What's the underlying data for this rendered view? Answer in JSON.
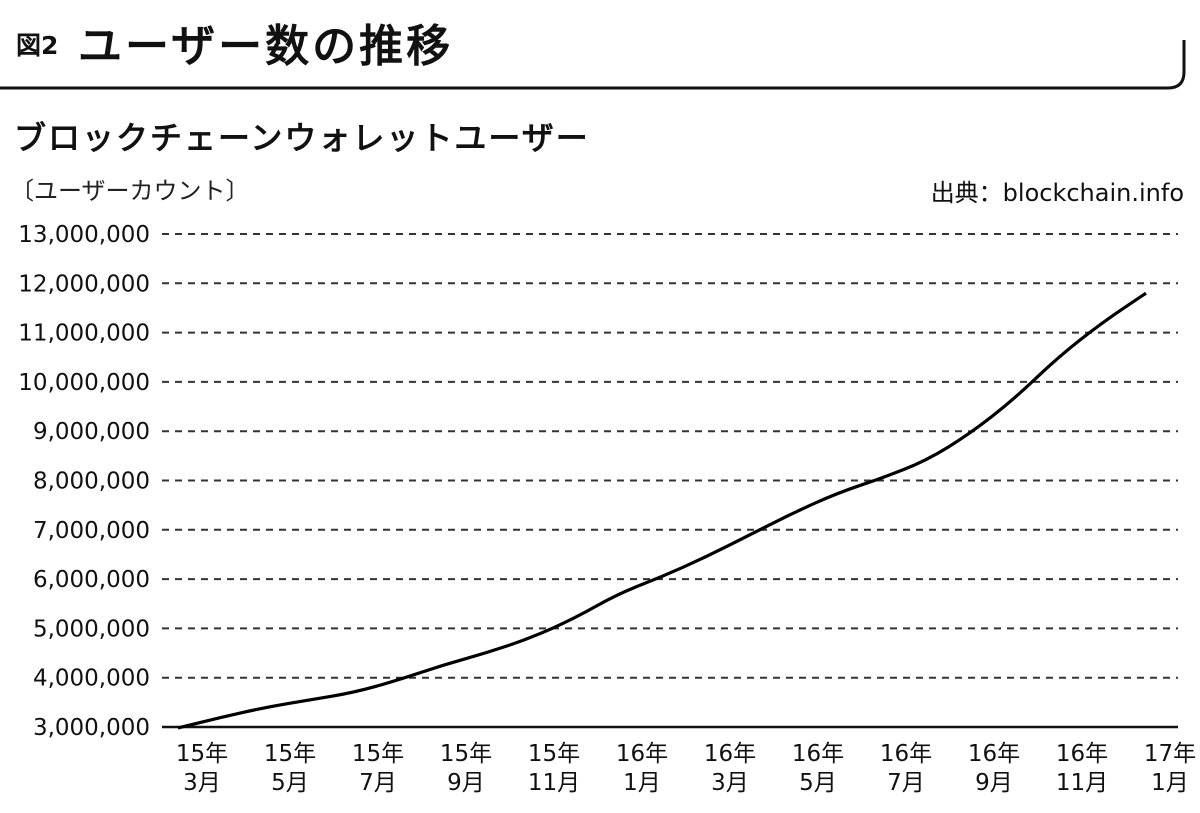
{
  "figure": {
    "label": "図2",
    "title": "ユーザー数の推移"
  },
  "chart_data": {
    "type": "line",
    "title": "ブロックチェーンウォレットユーザー",
    "ylabel": "〔ユーザーカウント〕",
    "source": "出典：blockchain.info",
    "ylim": [
      3000000,
      13000000
    ],
    "yticks": [
      3000000,
      4000000,
      5000000,
      6000000,
      7000000,
      8000000,
      9000000,
      10000000,
      11000000,
      12000000,
      13000000
    ],
    "ytick_labels": [
      "3,000,000",
      "4,000,000",
      "5,000,000",
      "6,000,000",
      "7,000,000",
      "8,000,000",
      "9,000,000",
      "10,000,000",
      "11,000,000",
      "12,000,000",
      "13,000,000"
    ],
    "xticks": [
      {
        "year": "15年",
        "month": "3月"
      },
      {
        "year": "15年",
        "month": "5月"
      },
      {
        "year": "15年",
        "month": "7月"
      },
      {
        "year": "15年",
        "month": "9月"
      },
      {
        "year": "15年",
        "month": "11月"
      },
      {
        "year": "16年",
        "month": "1月"
      },
      {
        "year": "16年",
        "month": "3月"
      },
      {
        "year": "16年",
        "month": "5月"
      },
      {
        "year": "16年",
        "month": "7月"
      },
      {
        "year": "16年",
        "month": "9月"
      },
      {
        "year": "16年",
        "month": "11月"
      },
      {
        "year": "17年",
        "month": "1月"
      }
    ],
    "grid": true,
    "series": [
      {
        "x": [
          "2015-03",
          "2015-04",
          "2015-05",
          "2015-06",
          "2015-07",
          "2015-08",
          "2015-09",
          "2015-10",
          "2015-11",
          "2015-12",
          "2016-01",
          "2016-02",
          "2016-03",
          "2016-04",
          "2016-05",
          "2016-06",
          "2016-07",
          "2016-08",
          "2016-09",
          "2016-10",
          "2016-11",
          "2016-12",
          "2017-01"
        ],
        "values": [
          2980000,
          3200000,
          3400000,
          3550000,
          3700000,
          3950000,
          4250000,
          4500000,
          4800000,
          5200000,
          5700000,
          6050000,
          6450000,
          6900000,
          7350000,
          7750000,
          8050000,
          8400000,
          8950000,
          9650000,
          10500000,
          11200000,
          11800000
        ]
      }
    ]
  }
}
